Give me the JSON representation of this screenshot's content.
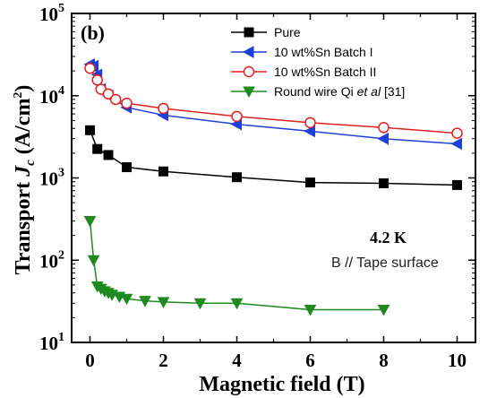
{
  "chart_data": {
    "type": "line",
    "panel_label": "(b)",
    "xlabel": "Magnetic field (T)",
    "ylabel_parts": [
      "Transport ",
      "J",
      "c",
      " (A/cm",
      "2",
      ")"
    ],
    "xlim": [
      -0.5,
      10.5
    ],
    "ylim": [
      10,
      100000
    ],
    "yscale": "log",
    "x_ticks": [
      0,
      2,
      4,
      6,
      8,
      10
    ],
    "x_tick_labels": [
      "0",
      "2",
      "4",
      "6",
      "8",
      "10"
    ],
    "y_ticks": [
      10,
      100,
      1000,
      10000,
      100000
    ],
    "y_tick_labels": [
      {
        "base": "10",
        "exp": "1"
      },
      {
        "base": "10",
        "exp": "2"
      },
      {
        "base": "10",
        "exp": "3"
      },
      {
        "base": "10",
        "exp": "4"
      },
      {
        "base": "10",
        "exp": "5"
      }
    ],
    "annotations": {
      "temperature": "4.2 K",
      "orientation": "B // Tape surface"
    },
    "legend_position": "top-right",
    "series": [
      {
        "name": "Pure",
        "color": "#000000",
        "marker": "square-filled",
        "x": [
          0,
          0.2,
          0.5,
          1,
          2,
          4,
          6,
          8,
          10
        ],
        "y": [
          3800,
          2250,
          1900,
          1350,
          1200,
          1020,
          880,
          860,
          820
        ]
      },
      {
        "name": "10 wt%Sn   Batch I",
        "color": "#1f3fd6",
        "marker": "triangle-left-filled",
        "x": [
          0,
          0.1,
          0.2,
          0.3,
          0.5,
          1,
          2,
          4,
          6,
          8,
          10
        ],
        "y": [
          24000,
          23000,
          18000,
          12000,
          10000,
          7200,
          5800,
          4500,
          3700,
          3000,
          2600
        ]
      },
      {
        "name": "10 wt%Sn   Batch II",
        "color": "#e02020",
        "marker": "circle-open",
        "x": [
          0,
          0.2,
          0.3,
          0.5,
          0.7,
          1,
          2,
          4,
          6,
          8,
          10
        ],
        "y": [
          21500,
          15500,
          12000,
          10500,
          9000,
          8100,
          7000,
          5600,
          4700,
          4100,
          3500
        ]
      },
      {
        "name_parts": [
          "Round wire  Qi ",
          "et al",
          " [31]"
        ],
        "name": "Round wire  Qi et al [31]",
        "color": "#1f8a1f",
        "marker": "triangle-down-filled",
        "x": [
          0,
          0.1,
          0.2,
          0.3,
          0.4,
          0.5,
          0.6,
          0.8,
          1,
          1.5,
          2,
          3,
          4,
          6,
          8
        ],
        "y": [
          300,
          100,
          48,
          45,
          42,
          40,
          38,
          36,
          34,
          32,
          31,
          30,
          30,
          25,
          25
        ]
      }
    ]
  }
}
